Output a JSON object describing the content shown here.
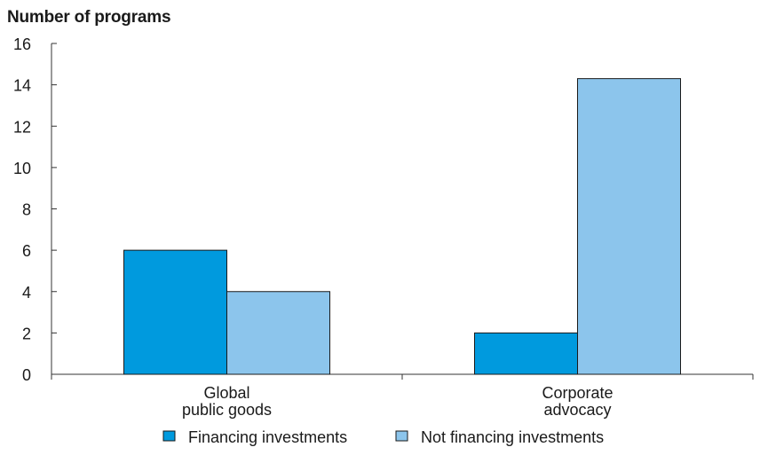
{
  "chart_data": {
    "type": "bar",
    "title": "Number of programs",
    "xlabel": "",
    "ylabel": "Number of programs",
    "ylim": [
      0,
      16
    ],
    "yticks": [
      0,
      2,
      4,
      6,
      8,
      10,
      12,
      14,
      16
    ],
    "categories": [
      [
        "Global",
        "public goods"
      ],
      [
        "Corporate",
        "advocacy"
      ]
    ],
    "series": [
      {
        "name": "Financing investments",
        "values": [
          6,
          2
        ],
        "color": "#009ADE"
      },
      {
        "name": "Not financing investments",
        "values": [
          4,
          14.3
        ],
        "color": "#8CC5EC"
      }
    ],
    "grid": false,
    "legend_position": "bottom-center"
  }
}
